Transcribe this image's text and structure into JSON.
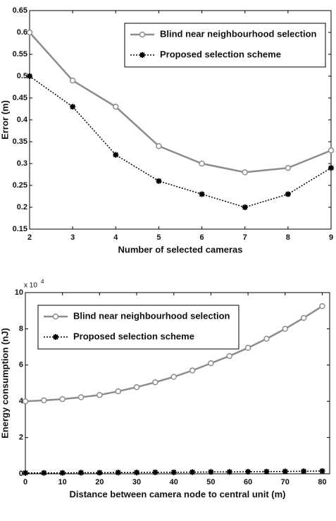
{
  "chart_data": [
    {
      "type": "line",
      "ylabel": "Error (m)",
      "xlabel": "Number of selected cameras",
      "x": [
        2,
        3,
        4,
        5,
        6,
        7,
        8,
        9
      ],
      "series": [
        {
          "name": "Blind near neighbourhood selection",
          "color": "#8c8c8c",
          "marker": "o",
          "dash": "solid",
          "values": [
            0.6,
            0.49,
            0.43,
            0.34,
            0.3,
            0.28,
            0.29,
            0.33
          ]
        },
        {
          "name": "Proposed selection scheme",
          "color": "#000000",
          "marker": "*",
          "dash": "dotted",
          "values": [
            0.5,
            0.43,
            0.32,
            0.26,
            0.23,
            0.2,
            0.23,
            0.29
          ]
        }
      ],
      "xlim": [
        2,
        9
      ],
      "xticks": [
        2,
        3,
        4,
        5,
        6,
        7,
        8,
        9
      ],
      "ylim": [
        0.15,
        0.65
      ],
      "yticks": [
        0.15,
        0.2,
        0.25,
        0.3,
        0.35,
        0.4,
        0.45,
        0.5,
        0.55,
        0.6,
        0.65
      ],
      "legend": "upper right"
    },
    {
      "type": "line",
      "ylabel": "Energy consumption (nJ)",
      "xlabel": "Distance between camera node to central unit (m)",
      "multiplier_base": "x 10",
      "multiplier_exponent": "4",
      "x": [
        0,
        5,
        10,
        15,
        20,
        25,
        30,
        35,
        40,
        45,
        50,
        55,
        60,
        65,
        70,
        75,
        80
      ],
      "series": [
        {
          "name": "Blind near neighbourhood selection",
          "color": "#8c8c8c",
          "marker": "o",
          "dash": "solid",
          "values": [
            4.0,
            4.05,
            4.12,
            4.22,
            4.35,
            4.55,
            4.78,
            5.05,
            5.35,
            5.7,
            6.1,
            6.5,
            6.95,
            7.45,
            8.0,
            8.6,
            9.25
          ]
        },
        {
          "name": "Proposed selection scheme",
          "color": "#000000",
          "marker": "*",
          "dash": "dotted",
          "values": [
            0.05,
            0.05,
            0.05,
            0.06,
            0.06,
            0.07,
            0.07,
            0.08,
            0.08,
            0.09,
            0.1,
            0.1,
            0.11,
            0.12,
            0.13,
            0.14,
            0.15
          ]
        }
      ],
      "xlim": [
        0,
        82
      ],
      "xticks": [
        0,
        10,
        20,
        30,
        40,
        50,
        60,
        70,
        80
      ],
      "ylim": [
        0,
        10
      ],
      "yticks": [
        0,
        2,
        4,
        6,
        8,
        10
      ],
      "legend": "upper left"
    }
  ]
}
